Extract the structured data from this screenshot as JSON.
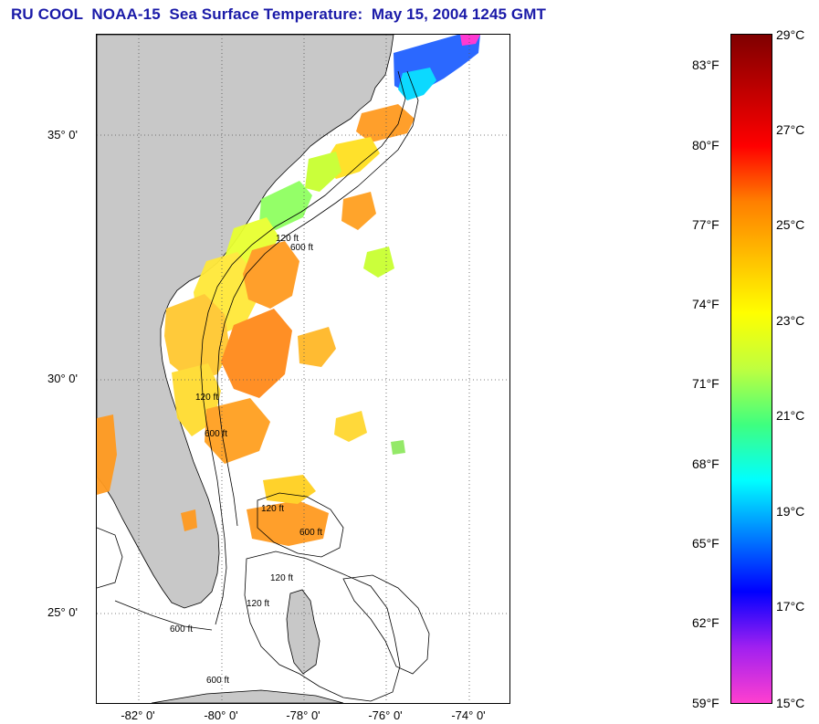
{
  "title": "RU COOL  NOAA-15  Sea Surface Temperature:  May 15, 2004 1245 GMT",
  "map": {
    "lat_labels": [
      "35° 0'",
      "30° 0'",
      "25° 0'"
    ],
    "lon_labels": [
      "-82° 0'",
      "-80° 0'",
      "-78° 0'",
      "-76° 0'",
      "-74° 0'"
    ],
    "isobath_labels": [
      "120 ft",
      "600 ft",
      "120 ft",
      "600 ft",
      "120 ft",
      "600 ft",
      "120 ft",
      "120 ft",
      "600 ft",
      "600 ft"
    ],
    "colors": {
      "land": "#c8c8c8",
      "gridline": "#555555",
      "contour": "#000000"
    }
  },
  "colorbar": {
    "fahrenheit_labels": [
      "83°F",
      "80°F",
      "77°F",
      "74°F",
      "71°F",
      "68°F",
      "65°F",
      "62°F",
      "59°F"
    ],
    "celsius_labels": [
      "29°C",
      "27°C",
      "25°C",
      "23°C",
      "21°C",
      "19°C",
      "17°C",
      "15°C"
    ],
    "colors": [
      "#ff3fcf",
      "#a020f0",
      "#0000ff",
      "#007fff",
      "#00ffff",
      "#3fff7f",
      "#bfff3f",
      "#ffff00",
      "#ffbf00",
      "#ff7f00",
      "#ff0000",
      "#bf0000",
      "#7f0000"
    ]
  }
}
